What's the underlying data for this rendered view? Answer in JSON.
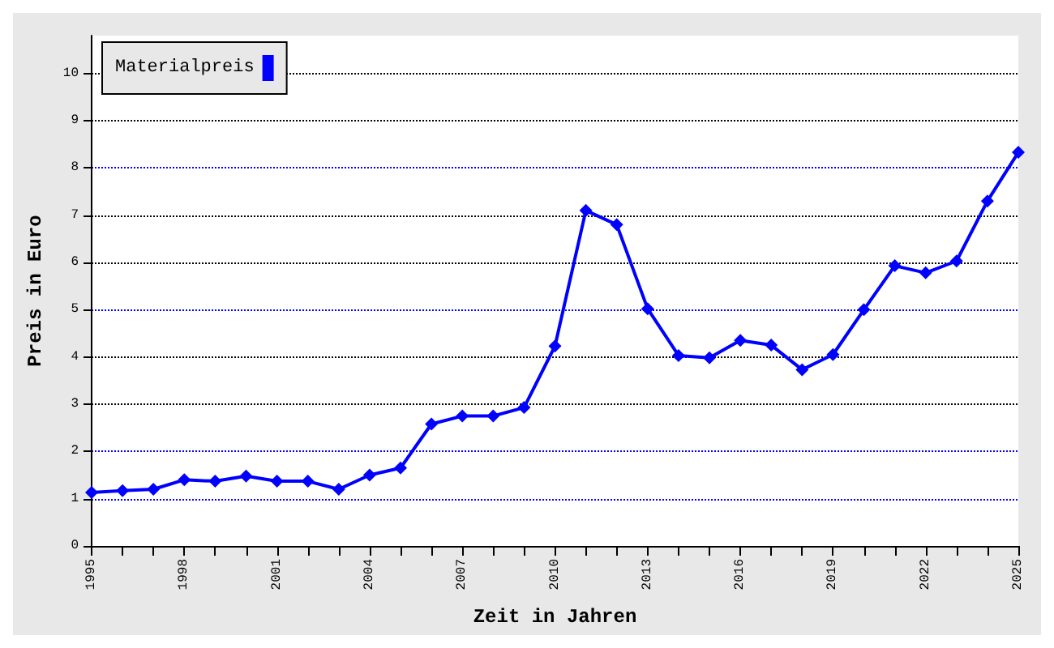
{
  "chart_data": {
    "type": "line",
    "xlabel": "Zeit in Jahren",
    "ylabel": "Preis in Euro",
    "x": [
      1995,
      1996,
      1997,
      1998,
      1999,
      2000,
      2001,
      2002,
      2003,
      2004,
      2005,
      2006,
      2007,
      2008,
      2009,
      2010,
      2011,
      2012,
      2013,
      2014,
      2015,
      2016,
      2017,
      2018,
      2019,
      2020,
      2021,
      2022,
      2023,
      2024,
      2025
    ],
    "series": [
      {
        "name": "Materialpreis",
        "color": "#0000ff",
        "values": [
          1.13,
          1.17,
          1.2,
          1.4,
          1.37,
          1.48,
          1.37,
          1.37,
          1.2,
          1.5,
          1.65,
          2.58,
          2.75,
          2.75,
          2.93,
          4.23,
          7.1,
          6.8,
          5.02,
          4.03,
          3.98,
          4.35,
          4.25,
          3.73,
          4.05,
          5.0,
          5.93,
          5.78,
          6.03,
          7.3,
          8.33
        ]
      }
    ],
    "xlim": [
      1995,
      2025
    ],
    "xticks": [
      1995,
      {
        "value": 1996,
        "label": null
      },
      {
        "value": 1997,
        "label": null
      },
      1998,
      {
        "value": 1999,
        "label": null
      },
      {
        "value": 2000,
        "label": null
      },
      2001,
      {
        "value": 2002,
        "label": null
      },
      {
        "value": 2003,
        "label": null
      },
      2004,
      {
        "value": 2005,
        "label": null
      },
      {
        "value": 2006,
        "label": null
      },
      2007,
      {
        "value": 2008,
        "label": null
      },
      {
        "value": 2009,
        "label": null
      },
      2010,
      {
        "value": 2011,
        "label": null
      },
      {
        "value": 2012,
        "label": null
      },
      2013,
      {
        "value": 2014,
        "label": null
      },
      {
        "value": 2015,
        "label": null
      },
      2016,
      {
        "value": 2017,
        "label": null
      },
      {
        "value": 2018,
        "label": null
      },
      2019,
      {
        "value": 2020,
        "label": null
      },
      {
        "value": 2021,
        "label": null
      },
      2022,
      {
        "value": 2023,
        "label": null
      },
      {
        "value": 2024,
        "label": null
      },
      2025
    ],
    "ylim": [
      0,
      10.8
    ],
    "yticks": [
      0,
      1,
      2,
      3,
      4,
      5,
      6,
      7,
      8,
      9,
      10
    ],
    "grid": "y",
    "legend": "top left",
    "marker": "diamond",
    "line_style": "solid"
  }
}
